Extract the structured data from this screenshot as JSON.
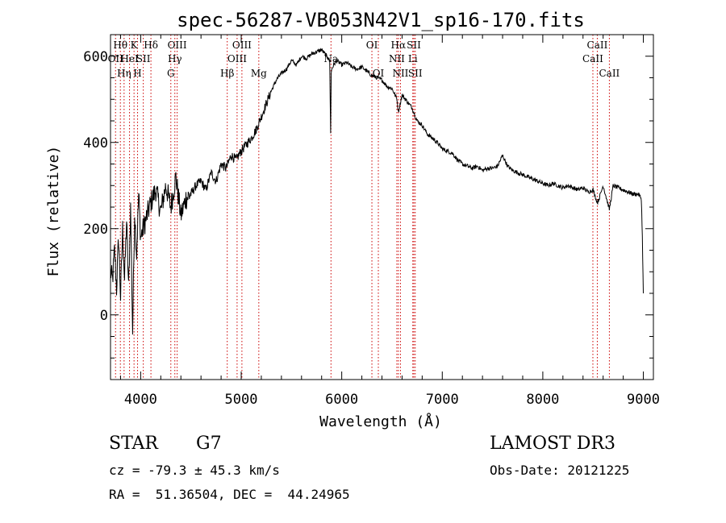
{
  "chart_data": {
    "type": "line",
    "title": "spec-56287-VB053N42V1_sp16-170.fits",
    "xlabel": "Wavelength (Å)",
    "ylabel": "Flux (relative)",
    "xlim": [
      3700,
      9100
    ],
    "ylim": [
      -150,
      650
    ],
    "xticks": [
      4000,
      5000,
      6000,
      7000,
      8000,
      9000
    ],
    "yticks": [
      0,
      200,
      400,
      600
    ],
    "grid": false,
    "series": [
      {
        "name": "flux",
        "x": [
          3700,
          3720,
          3740,
          3760,
          3780,
          3800,
          3820,
          3840,
          3860,
          3880,
          3900,
          3920,
          3940,
          3960,
          3980,
          4000,
          4050,
          4100,
          4150,
          4200,
          4250,
          4300,
          4350,
          4400,
          4450,
          4500,
          4550,
          4600,
          4650,
          4700,
          4750,
          4800,
          4850,
          4900,
          4950,
          5000,
          5050,
          5100,
          5150,
          5200,
          5250,
          5300,
          5350,
          5400,
          5450,
          5500,
          5550,
          5600,
          5650,
          5700,
          5750,
          5800,
          5850,
          5880,
          5890,
          5895,
          5900,
          5920,
          5950,
          6000,
          6050,
          6100,
          6150,
          6200,
          6250,
          6300,
          6350,
          6400,
          6450,
          6500,
          6550,
          6563,
          6600,
          6650,
          6700,
          6750,
          6800,
          6850,
          6900,
          6950,
          7000,
          7050,
          7100,
          7150,
          7200,
          7250,
          7300,
          7350,
          7400,
          7450,
          7500,
          7550,
          7600,
          7650,
          7700,
          7750,
          7800,
          7850,
          7900,
          7950,
          8000,
          8050,
          8100,
          8150,
          8200,
          8250,
          8300,
          8350,
          8400,
          8450,
          8500,
          8542,
          8560,
          8600,
          8662,
          8700,
          8750,
          8800,
          8850,
          8900,
          8950,
          8980,
          8990,
          9000
        ],
        "values": [
          100,
          80,
          150,
          60,
          180,
          40,
          200,
          80,
          220,
          60,
          250,
          -40,
          240,
          140,
          280,
          180,
          220,
          260,
          290,
          240,
          300,
          250,
          320,
          230,
          270,
          280,
          300,
          310,
          290,
          330,
          310,
          350,
          340,
          370,
          360,
          380,
          395,
          410,
          430,
          460,
          490,
          520,
          545,
          560,
          570,
          590,
          580,
          600,
          595,
          605,
          610,
          615,
          600,
          590,
          420,
          560,
          570,
          580,
          590,
          580,
          585,
          575,
          570,
          575,
          565,
          555,
          550,
          545,
          530,
          525,
          500,
          470,
          510,
          495,
          480,
          450,
          440,
          420,
          410,
          400,
          385,
          380,
          375,
          360,
          350,
          345,
          340,
          345,
          335,
          340,
          340,
          345,
          370,
          345,
          335,
          330,
          325,
          320,
          315,
          310,
          305,
          300,
          305,
          300,
          295,
          300,
          295,
          290,
          295,
          285,
          290,
          260,
          270,
          300,
          245,
          300,
          295,
          290,
          285,
          280,
          280,
          270,
          180,
          50
        ]
      }
    ],
    "lines": [
      {
        "x": 3750,
        "label": "OII",
        "row": 1
      },
      {
        "x": 3798,
        "label": "Hθ",
        "row": 0
      },
      {
        "x": 3835,
        "label": "Hη",
        "row": 2
      },
      {
        "x": 3889,
        "label": "HeI",
        "row": 1
      },
      {
        "x": 3934,
        "label": "K",
        "row": 0
      },
      {
        "x": 3969,
        "label": "H",
        "row": 2
      },
      {
        "x": 4026,
        "label": "SII",
        "row": 1
      },
      {
        "x": 4102,
        "label": "Hδ",
        "row": 0
      },
      {
        "x": 4300,
        "label": "G",
        "row": 2
      },
      {
        "x": 4340,
        "label": "Hγ",
        "row": 1
      },
      {
        "x": 4363,
        "label": "OIII",
        "row": 0
      },
      {
        "x": 4861,
        "label": "Hβ",
        "row": 2
      },
      {
        "x": 4959,
        "label": "OIII",
        "row": 1
      },
      {
        "x": 5007,
        "label": "OIII",
        "row": 0
      },
      {
        "x": 5175,
        "label": "Mg",
        "row": 2
      },
      {
        "x": 5893,
        "label": "Na",
        "row": 1
      },
      {
        "x": 6300,
        "label": "OI",
        "row": 0
      },
      {
        "x": 6364,
        "label": "OI",
        "row": 2
      },
      {
        "x": 6548,
        "label": "NII",
        "row": 1
      },
      {
        "x": 6563,
        "label": "Hα",
        "row": 0
      },
      {
        "x": 6584,
        "label": "NII",
        "row": 2
      },
      {
        "x": 6707,
        "label": "Li",
        "row": 1
      },
      {
        "x": 6717,
        "label": "SII",
        "row": 0
      },
      {
        "x": 6731,
        "label": "SII",
        "row": 2
      },
      {
        "x": 8498,
        "label": "CaII",
        "row": 1
      },
      {
        "x": 8542,
        "label": "CaII",
        "row": 0
      },
      {
        "x": 8662,
        "label": "CaII",
        "row": 2
      }
    ]
  },
  "info": {
    "class_label": "STAR",
    "subclass": "G7",
    "survey": "LAMOST DR3",
    "cz": "cz = -79.3 ± 45.3 km/s",
    "obs_date": "Obs-Date: 20121225",
    "coords": "RA =  51.36504, DEC =  44.24965"
  },
  "colors": {
    "line_marker": "#cc0000",
    "spectrum": "#000000",
    "axes": "#000000"
  }
}
